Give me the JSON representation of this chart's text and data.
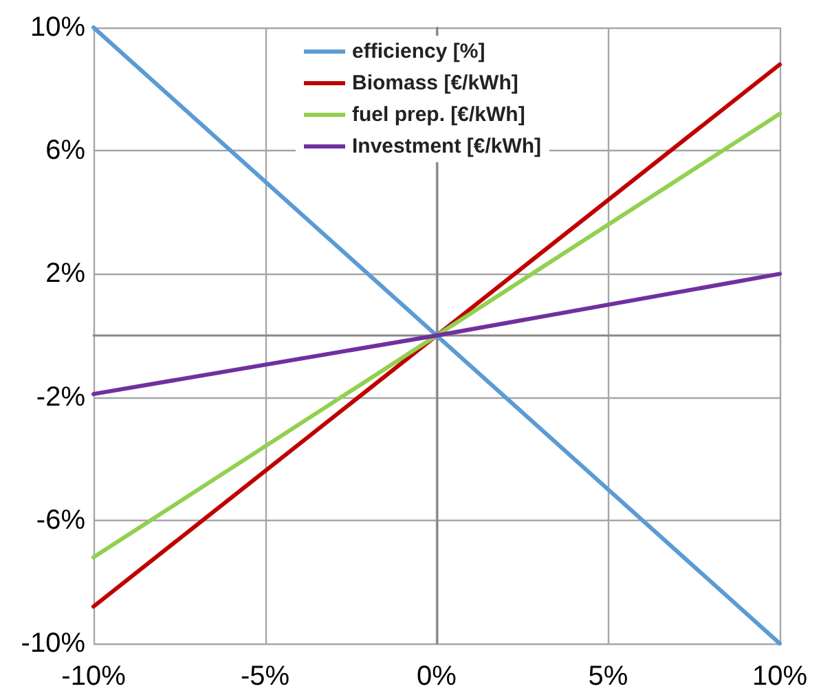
{
  "chart_data": {
    "type": "line",
    "x": [
      -10,
      0,
      10
    ],
    "series": [
      {
        "name": "efficiency [%]",
        "color": "#5b9bd5",
        "values": [
          10,
          0,
          -10
        ]
      },
      {
        "name": "Biomass [€/kWh]",
        "color": "#c00000",
        "values": [
          -8.8,
          0,
          8.8
        ]
      },
      {
        "name": "fuel prep. [€/kWh]",
        "color": "#92d050",
        "values": [
          -7.2,
          0,
          7.2
        ]
      },
      {
        "name": "Investment [€/kWh]",
        "color": "#7030a0",
        "values": [
          -1.9,
          0,
          2
        ]
      }
    ],
    "xlim": [
      -10,
      10
    ],
    "xticks": [
      {
        "value": -10,
        "label": "-10%"
      },
      {
        "value": -5,
        "label": "-5%"
      },
      {
        "value": 0,
        "label": "0%"
      },
      {
        "value": 5,
        "label": "5%"
      },
      {
        "value": 10,
        "label": "10%"
      }
    ],
    "ylim": [
      -10,
      10
    ],
    "yticks": [
      {
        "value": -10,
        "label": "-10%"
      },
      {
        "value": -6,
        "label": "-6%"
      },
      {
        "value": -2,
        "label": "-2%"
      },
      {
        "value": 2,
        "label": "2%"
      },
      {
        "value": 6,
        "label": "6%"
      },
      {
        "value": 10,
        "label": "10%"
      }
    ],
    "grid": true,
    "legend": "top",
    "marker": "none",
    "line_style": "solid"
  }
}
